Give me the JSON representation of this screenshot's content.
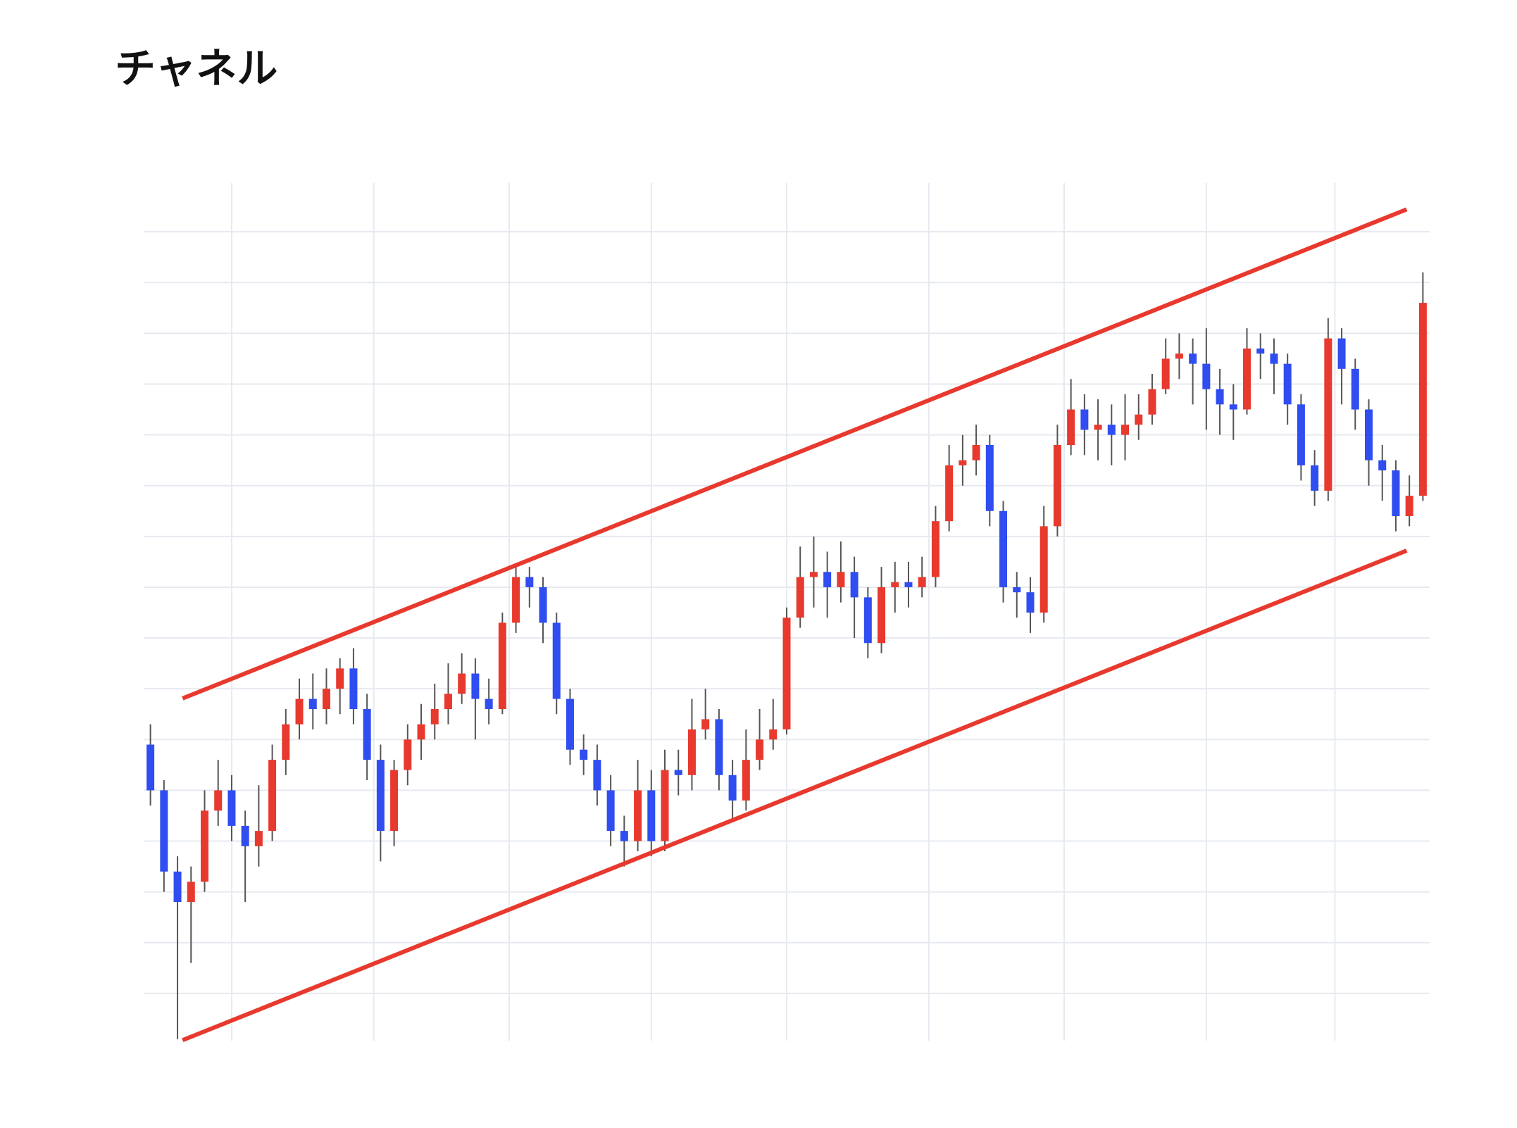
{
  "chart_data": {
    "type": "candlestick",
    "title": "チャネル",
    "x": [
      1,
      3,
      5,
      7,
      9,
      11,
      13,
      15,
      17,
      19,
      21,
      23,
      25,
      27,
      29,
      31,
      33,
      35,
      37,
      39,
      41,
      43,
      45,
      47,
      49,
      51,
      53,
      55,
      57,
      59,
      61,
      63,
      65,
      67,
      69,
      71,
      73,
      75,
      77,
      79,
      81,
      83,
      85,
      87,
      89,
      91,
      93,
      95,
      97,
      99,
      101,
      103,
      105,
      107,
      109,
      111,
      113,
      115,
      117,
      119,
      121,
      123,
      125,
      127,
      129,
      131,
      133,
      135,
      137,
      139,
      141,
      143,
      145,
      147,
      149,
      151,
      153,
      155,
      157,
      159,
      161,
      163,
      165,
      167,
      169,
      171,
      173,
      175,
      177,
      179,
      181,
      183,
      185,
      187,
      189
    ],
    "open": [
      5.9,
      5.0,
      3.4,
      2.8,
      3.2,
      4.6,
      5.0,
      4.3,
      3.9,
      4.2,
      5.6,
      6.3,
      6.8,
      6.6,
      7.0,
      7.4,
      6.6,
      5.6,
      4.2,
      5.4,
      6.0,
      6.3,
      6.6,
      6.9,
      7.3,
      6.8,
      6.6,
      8.3,
      9.2,
      9.0,
      8.3,
      6.8,
      5.8,
      5.6,
      5.0,
      4.2,
      4.0,
      5.0,
      4.0,
      5.4,
      5.3,
      6.2,
      6.4,
      5.3,
      4.8,
      5.6,
      6.0,
      6.2,
      8.4,
      9.2,
      9.3,
      9.0,
      9.3,
      8.8,
      7.9,
      9.0,
      9.1,
      9.0,
      9.2,
      10.3,
      11.4,
      11.5,
      11.8,
      10.5,
      9.0,
      8.9,
      8.5,
      10.2,
      11.8,
      12.5,
      12.1,
      12.2,
      12.0,
      12.2,
      12.4,
      12.9,
      13.5,
      13.6,
      13.4,
      12.9,
      12.6,
      12.5,
      13.7,
      13.6,
      13.4,
      12.6,
      11.4,
      10.9,
      13.9,
      13.3,
      12.5,
      11.5,
      11.3,
      10.4,
      10.8
    ],
    "high": [
      6.3,
      5.2,
      3.7,
      3.5,
      5.0,
      5.6,
      5.3,
      4.6,
      5.1,
      5.9,
      6.6,
      7.2,
      7.3,
      7.4,
      7.6,
      7.8,
      6.9,
      5.9,
      5.6,
      6.3,
      6.7,
      7.1,
      7.5,
      7.7,
      7.6,
      7.2,
      8.5,
      9.4,
      9.4,
      9.2,
      8.5,
      7.0,
      6.1,
      5.9,
      5.3,
      4.5,
      5.6,
      5.4,
      5.8,
      5.8,
      6.8,
      7.0,
      6.6,
      5.6,
      6.2,
      6.6,
      6.8,
      8.6,
      9.8,
      10.0,
      9.7,
      9.9,
      9.6,
      9.0,
      9.4,
      9.5,
      9.5,
      9.6,
      10.6,
      11.8,
      12.0,
      12.2,
      12.0,
      10.7,
      9.3,
      9.2,
      10.6,
      12.2,
      13.1,
      12.8,
      12.7,
      12.6,
      12.8,
      12.8,
      13.2,
      13.9,
      14.0,
      13.9,
      14.1,
      13.3,
      13.0,
      14.1,
      14.0,
      13.9,
      13.6,
      12.8,
      11.7,
      14.3,
      14.1,
      13.5,
      12.7,
      11.8,
      11.5,
      11.2,
      15.2
    ],
    "low": [
      4.7,
      3.0,
      0.1,
      1.6,
      3.0,
      4.3,
      4.0,
      2.8,
      3.5,
      4.0,
      5.3,
      6.0,
      6.2,
      6.3,
      6.5,
      6.3,
      5.2,
      3.6,
      3.9,
      5.1,
      5.6,
      6.0,
      6.3,
      6.7,
      6.0,
      6.3,
      6.5,
      8.1,
      8.6,
      7.9,
      6.5,
      5.5,
      5.3,
      4.7,
      3.9,
      3.5,
      3.8,
      3.7,
      3.8,
      4.9,
      5.0,
      6.0,
      5.0,
      4.4,
      4.6,
      5.4,
      5.8,
      6.1,
      8.2,
      8.6,
      8.4,
      8.7,
      8.0,
      7.6,
      7.7,
      8.5,
      8.6,
      8.8,
      9.0,
      10.1,
      11.0,
      11.2,
      10.2,
      8.7,
      8.4,
      8.1,
      8.3,
      10.0,
      11.6,
      11.6,
      11.5,
      11.4,
      11.5,
      11.9,
      12.2,
      12.8,
      13.1,
      12.6,
      12.1,
      12.0,
      11.9,
      12.4,
      13.1,
      12.8,
      12.2,
      11.1,
      10.6,
      10.7,
      12.6,
      12.1,
      11.0,
      10.7,
      10.1,
      10.2,
      10.7
    ],
    "close": [
      5.0,
      3.4,
      2.8,
      3.2,
      4.6,
      5.0,
      4.3,
      3.9,
      4.2,
      5.6,
      6.3,
      6.8,
      6.6,
      7.0,
      7.4,
      6.6,
      5.6,
      4.2,
      5.4,
      6.0,
      6.3,
      6.6,
      6.9,
      7.3,
      6.8,
      6.6,
      8.3,
      9.2,
      9.0,
      8.3,
      6.8,
      5.8,
      5.6,
      5.0,
      4.2,
      4.0,
      5.0,
      4.0,
      5.4,
      5.3,
      6.2,
      6.4,
      5.3,
      4.8,
      5.6,
      6.0,
      6.2,
      8.4,
      9.2,
      9.3,
      9.0,
      9.3,
      8.8,
      7.9,
      9.0,
      9.1,
      9.0,
      9.2,
      10.3,
      11.4,
      11.5,
      11.8,
      10.5,
      9.0,
      8.9,
      8.5,
      10.2,
      11.8,
      12.5,
      12.1,
      12.2,
      12.0,
      12.2,
      12.4,
      12.9,
      13.5,
      13.6,
      13.4,
      12.9,
      12.6,
      12.5,
      13.7,
      13.6,
      13.4,
      12.6,
      11.4,
      10.9,
      13.9,
      13.3,
      12.5,
      11.5,
      11.3,
      10.4,
      10.8,
      14.6
    ],
    "up_color": "#e8392e",
    "down_color": "#2f4df0",
    "wick_color": "#555555",
    "lines": [
      {
        "x": [
          5.75,
          186.6
        ],
        "values": [
          6.81,
          16.44
        ],
        "color": "#e8392e"
      },
      {
        "x": [
          5.75,
          186.6
        ],
        "values": [
          0.08,
          9.72
        ],
        "color": "#e8392e"
      }
    ],
    "xlim": [
      0,
      190
    ],
    "ylim": [
      0,
      17
    ],
    "xticks": [
      13,
      34,
      54,
      75,
      95,
      116,
      136,
      157,
      176
    ],
    "yticks": [
      1,
      2,
      3,
      4,
      5,
      6,
      7,
      8,
      9,
      10,
      11,
      12,
      13,
      14,
      15,
      16
    ],
    "grid": true
  }
}
